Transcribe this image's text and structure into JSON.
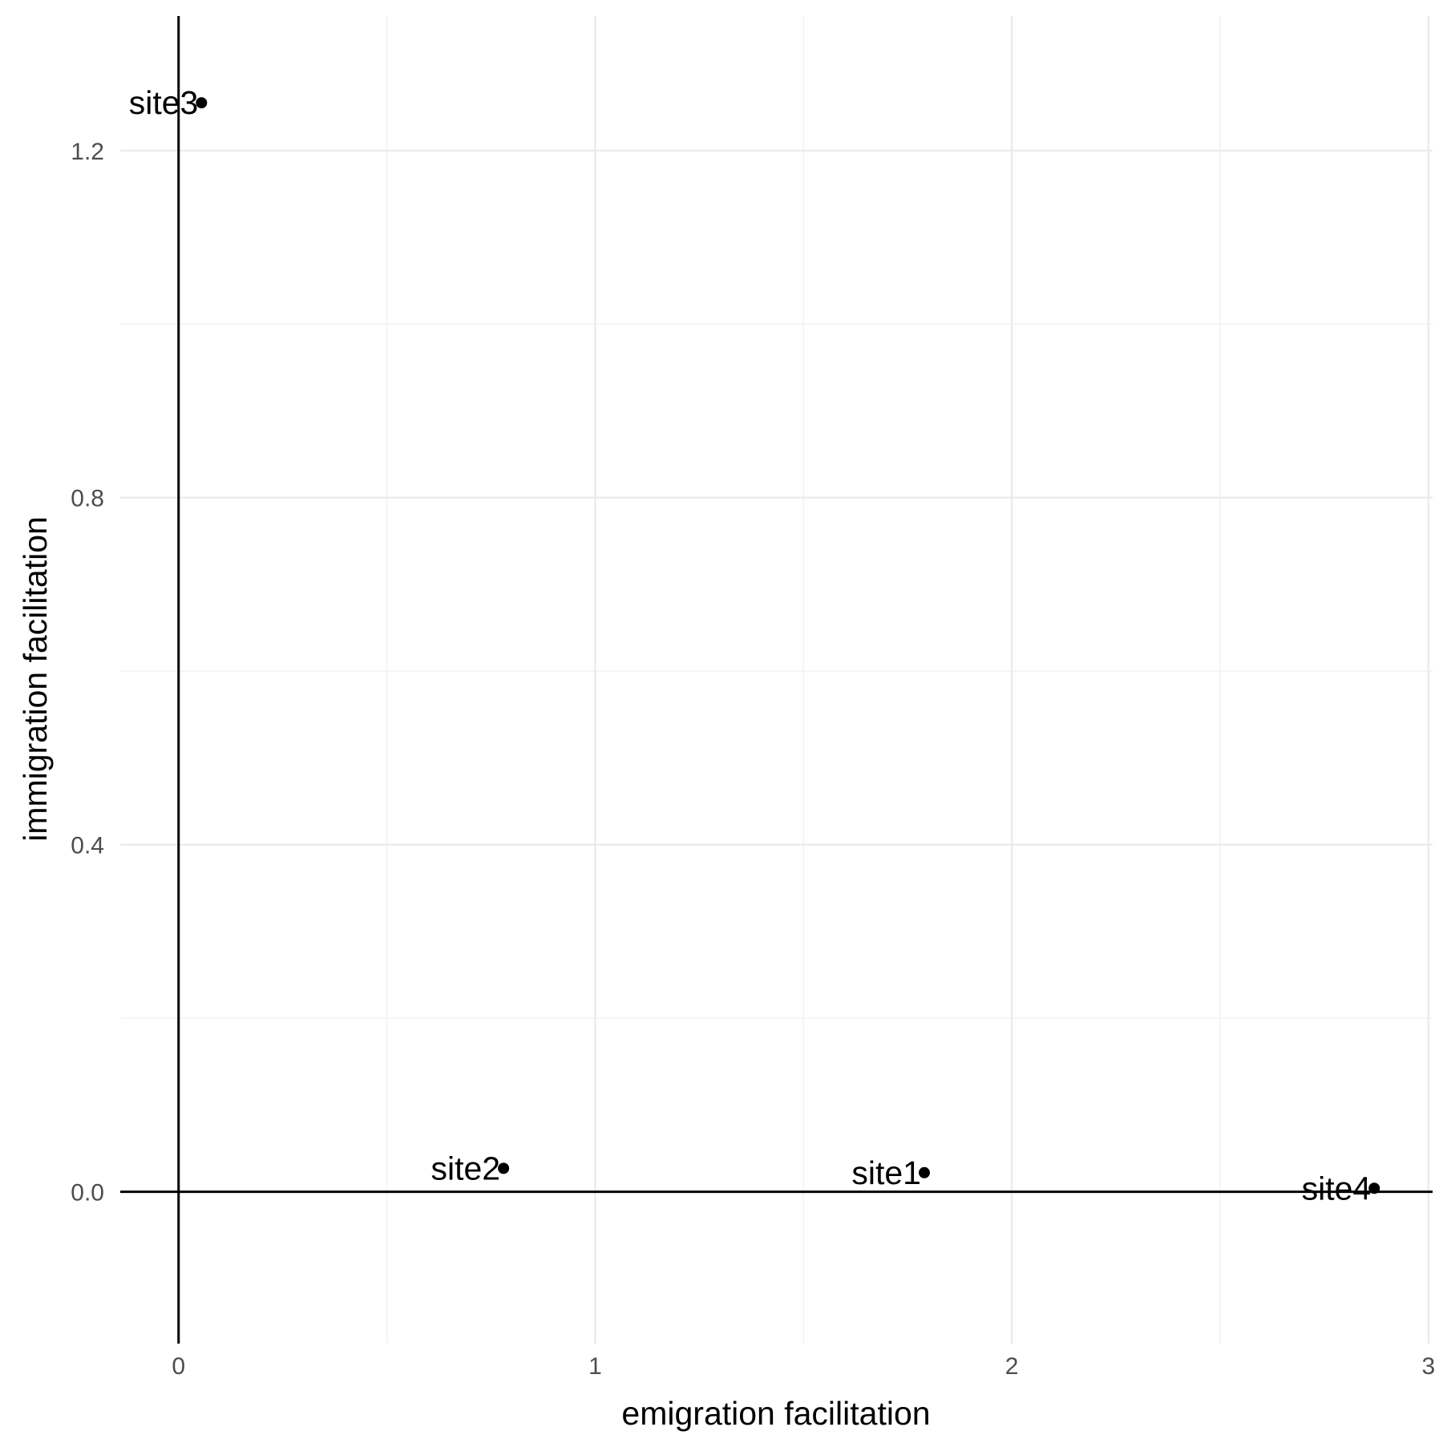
{
  "chart_data": {
    "type": "scatter",
    "title": "",
    "xlabel": "emigration facilitation",
    "ylabel": "immigration facilitation",
    "xlim": [
      -0.14,
      3.01
    ],
    "ylim": [
      -0.175,
      1.355
    ],
    "x_ticks": [
      0,
      1,
      2,
      3
    ],
    "x_tick_labels": [
      "0",
      "1",
      "2",
      "3"
    ],
    "y_ticks": [
      0.0,
      0.4,
      0.8,
      1.2
    ],
    "y_tick_labels": [
      "0.0",
      "0.4",
      "0.8",
      "1.2"
    ],
    "x_minor_gridlines": [
      0.5,
      1.5,
      2.5
    ],
    "y_minor_gridlines": [
      0.2,
      0.6,
      1.0
    ],
    "reference_lines": {
      "x": 0,
      "y": 0
    },
    "grid": true,
    "legend": "none",
    "points": [
      {
        "label": "site1",
        "x": 1.79,
        "y": 0.022
      },
      {
        "label": "site2",
        "x": 0.78,
        "y": 0.027
      },
      {
        "label": "site3",
        "x": 0.055,
        "y": 1.255
      },
      {
        "label": "site4",
        "x": 2.87,
        "y": 0.004
      }
    ]
  },
  "colors": {
    "background": "#ffffff",
    "grid_major": "#ebebeb",
    "grid_minor": "#f3f3f3",
    "reference_line": "#000000",
    "point": "#000000",
    "tick_text": "#4d4d4d",
    "title_text": "#000000"
  }
}
